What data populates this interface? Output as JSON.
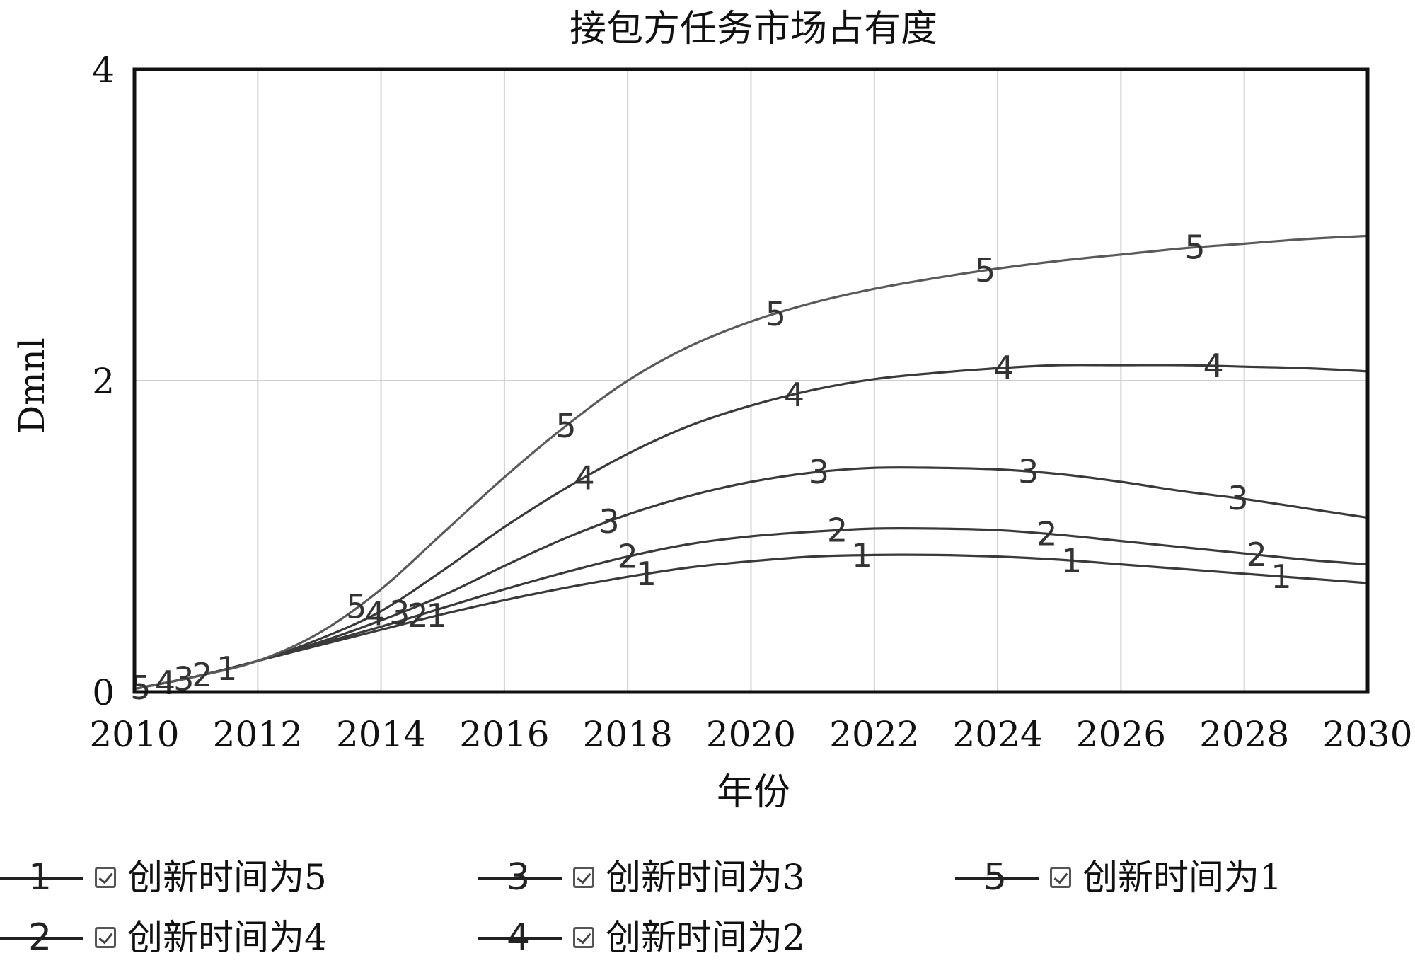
{
  "chart_data": {
    "type": "line",
    "title": "接包方任务市场占有度",
    "xlabel": "年份",
    "ylabel": "Dmnl",
    "xlim": [
      2010,
      2030
    ],
    "ylim": [
      0,
      4
    ],
    "x_ticks": [
      "2010",
      "2012",
      "2014",
      "2016",
      "2018",
      "2020",
      "2022",
      "2024",
      "2026",
      "2028",
      "2030"
    ],
    "y_ticks": [
      "0",
      "2",
      "4"
    ],
    "grid": true,
    "legend_position": "bottom",
    "line_color": "#333333",
    "x": [
      2010,
      2011,
      2012,
      2013,
      2014,
      2015,
      2016,
      2017,
      2018,
      2019,
      2020,
      2021,
      2022,
      2023,
      2024,
      2025,
      2026,
      2027,
      2028,
      2029,
      2030
    ],
    "series": [
      {
        "name": "创新时间为5",
        "marker": "1",
        "values": [
          0.02,
          0.1,
          0.2,
          0.3,
          0.4,
          0.5,
          0.59,
          0.67,
          0.74,
          0.8,
          0.84,
          0.87,
          0.88,
          0.88,
          0.87,
          0.85,
          0.82,
          0.79,
          0.76,
          0.73,
          0.7
        ]
      },
      {
        "name": "创新时间为4",
        "marker": "2",
        "values": [
          0.02,
          0.1,
          0.2,
          0.31,
          0.42,
          0.54,
          0.66,
          0.77,
          0.87,
          0.95,
          1.0,
          1.03,
          1.05,
          1.05,
          1.04,
          1.01,
          0.97,
          0.93,
          0.89,
          0.85,
          0.82
        ]
      },
      {
        "name": "创新时间为3",
        "marker": "3",
        "values": [
          0.02,
          0.1,
          0.2,
          0.32,
          0.46,
          0.62,
          0.81,
          0.99,
          1.14,
          1.26,
          1.35,
          1.41,
          1.44,
          1.44,
          1.43,
          1.4,
          1.35,
          1.29,
          1.24,
          1.18,
          1.12
        ]
      },
      {
        "name": "创新时间为2",
        "marker": "4",
        "values": [
          0.02,
          0.1,
          0.2,
          0.34,
          0.52,
          0.78,
          1.06,
          1.31,
          1.53,
          1.71,
          1.84,
          1.94,
          2.01,
          2.05,
          2.08,
          2.1,
          2.1,
          2.1,
          2.09,
          2.08,
          2.06
        ]
      },
      {
        "name": "创新时间为1",
        "marker": "5",
        "values": [
          0.02,
          0.1,
          0.2,
          0.38,
          0.66,
          1.02,
          1.38,
          1.71,
          2.0,
          2.22,
          2.38,
          2.5,
          2.59,
          2.66,
          2.72,
          2.77,
          2.81,
          2.85,
          2.88,
          2.91,
          2.93
        ]
      }
    ],
    "marker_labels": [
      {
        "series": 0,
        "text": "1",
        "at": [
          2011.5,
          2014.9,
          2018.3,
          2021.8,
          2025.2,
          2028.6
        ]
      },
      {
        "series": 1,
        "text": "2",
        "at": [
          2011.1,
          2014.6,
          2018.0,
          2021.4,
          2024.8,
          2028.2
        ]
      },
      {
        "series": 2,
        "text": "3",
        "at": [
          2010.8,
          2014.3,
          2017.7,
          2021.1,
          2024.5,
          2027.9
        ]
      },
      {
        "series": 3,
        "text": "4",
        "at": [
          2010.5,
          2013.9,
          2017.3,
          2020.7,
          2024.1,
          2027.5
        ]
      },
      {
        "series": 4,
        "text": "5",
        "at": [
          2010.1,
          2013.6,
          2017.0,
          2020.4,
          2023.8,
          2027.2
        ]
      }
    ]
  },
  "legend": {
    "items": [
      {
        "marker": "1",
        "label": "创新时间为5"
      },
      {
        "marker": "3",
        "label": "创新时间为3"
      },
      {
        "marker": "5",
        "label": "创新时间为1"
      },
      {
        "marker": "2",
        "label": "创新时间为4"
      },
      {
        "marker": "4",
        "label": "创新时间为2"
      }
    ]
  }
}
